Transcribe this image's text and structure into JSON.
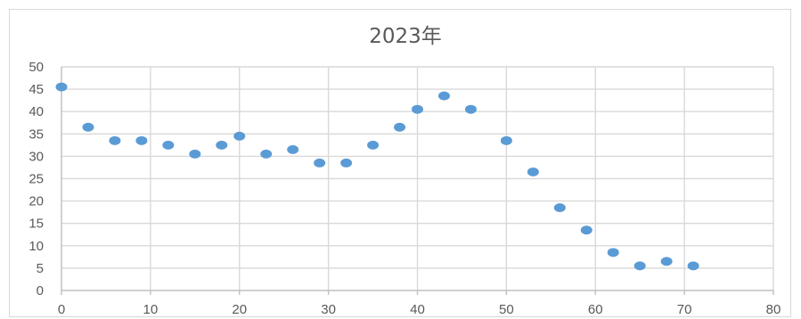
{
  "chart_data": {
    "type": "scatter",
    "title": "2023年",
    "xlabel": "",
    "ylabel": "",
    "xlim": [
      0,
      80
    ],
    "ylim": [
      0,
      50
    ],
    "x_ticks": [
      0,
      10,
      20,
      30,
      40,
      50,
      60,
      70,
      80
    ],
    "y_ticks": [
      0,
      5,
      10,
      15,
      20,
      25,
      30,
      35,
      40,
      45,
      50
    ],
    "grid": true,
    "legend": "none",
    "series": [
      {
        "color": "#5b9bd5",
        "points": [
          {
            "x": 0,
            "y": 45.5
          },
          {
            "x": 3,
            "y": 36.5
          },
          {
            "x": 6,
            "y": 33.5
          },
          {
            "x": 9,
            "y": 33.5
          },
          {
            "x": 12,
            "y": 32.5
          },
          {
            "x": 15,
            "y": 30.5
          },
          {
            "x": 18,
            "y": 32.5
          },
          {
            "x": 20,
            "y": 34.5
          },
          {
            "x": 23,
            "y": 30.5
          },
          {
            "x": 26,
            "y": 31.5
          },
          {
            "x": 29,
            "y": 28.5
          },
          {
            "x": 32,
            "y": 28.5
          },
          {
            "x": 35,
            "y": 32.5
          },
          {
            "x": 38,
            "y": 36.5
          },
          {
            "x": 40,
            "y": 40.5
          },
          {
            "x": 43,
            "y": 43.5
          },
          {
            "x": 46,
            "y": 40.5
          },
          {
            "x": 50,
            "y": 33.5
          },
          {
            "x": 53,
            "y": 26.5
          },
          {
            "x": 56,
            "y": 18.5
          },
          {
            "x": 59,
            "y": 13.5
          },
          {
            "x": 62,
            "y": 8.5
          },
          {
            "x": 65,
            "y": 5.5
          },
          {
            "x": 68,
            "y": 6.5
          },
          {
            "x": 71,
            "y": 5.5
          }
        ]
      }
    ]
  }
}
